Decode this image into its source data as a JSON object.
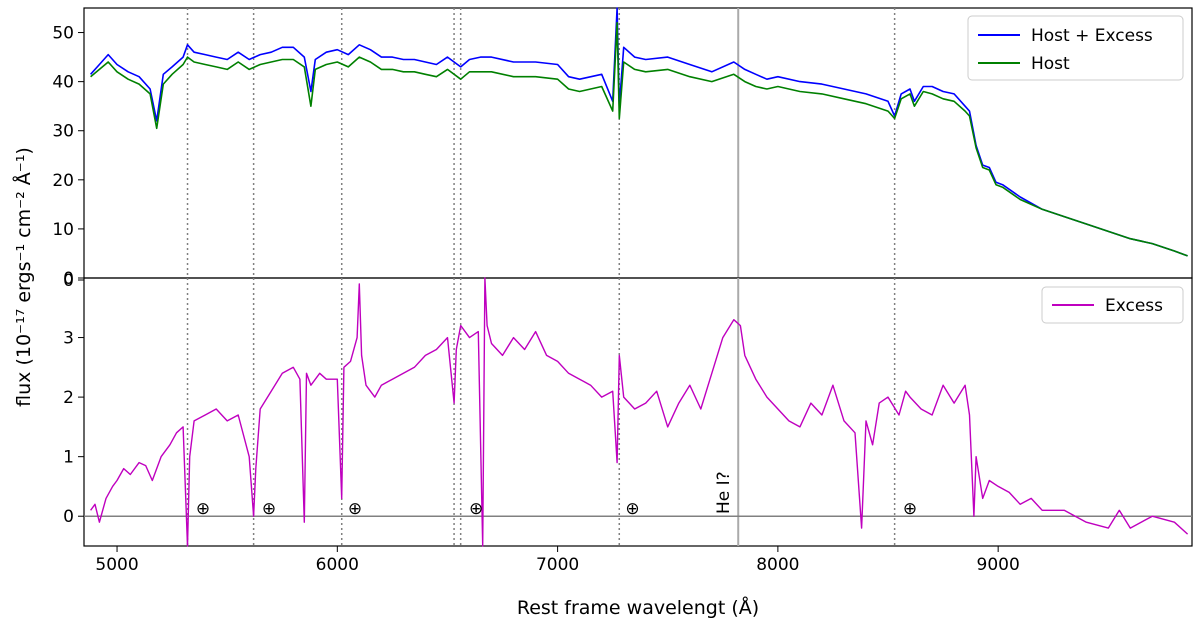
{
  "chart_data": [
    {
      "panel": "top",
      "type": "line",
      "ylim": [
        0,
        55
      ],
      "xlim": [
        4850,
        9880
      ],
      "yticks": [
        0,
        10,
        20,
        30,
        40,
        50
      ],
      "legend_position": "top-right",
      "series": [
        {
          "name": "Host + Excess",
          "color": "#0000ff",
          "x": [
            4880,
            4920,
            4960,
            5000,
            5050,
            5100,
            5150,
            5180,
            5210,
            5250,
            5300,
            5320,
            5350,
            5400,
            5450,
            5500,
            5550,
            5600,
            5650,
            5700,
            5750,
            5800,
            5850,
            5880,
            5900,
            5950,
            6000,
            6050,
            6100,
            6150,
            6200,
            6250,
            6300,
            6350,
            6400,
            6450,
            6500,
            6560,
            6600,
            6650,
            6700,
            6800,
            6900,
            7000,
            7050,
            7100,
            7200,
            7250,
            7270,
            7280,
            7300,
            7350,
            7400,
            7500,
            7600,
            7700,
            7800,
            7850,
            7900,
            7950,
            8000,
            8100,
            8200,
            8300,
            8400,
            8500,
            8530,
            8560,
            8600,
            8620,
            8660,
            8700,
            8750,
            8800,
            8850,
            8870,
            8900,
            8930,
            8960,
            8990,
            9020,
            9100,
            9200,
            9300,
            9400,
            9500,
            9600,
            9700,
            9800,
            9860
          ],
          "values": [
            41.5,
            43.5,
            45.5,
            43.5,
            42,
            41,
            38.5,
            32,
            41.5,
            43,
            45,
            47.5,
            46,
            45.5,
            45,
            44.5,
            46,
            44.5,
            45.5,
            46,
            47,
            47,
            45,
            38,
            44.5,
            46,
            46.5,
            45.5,
            47.5,
            46.5,
            45,
            45,
            44.5,
            44.5,
            44,
            43.5,
            45,
            43,
            44.5,
            45,
            45,
            44,
            44,
            43.5,
            41,
            40.5,
            41.5,
            36,
            55,
            35,
            47,
            45,
            44.5,
            45,
            43.5,
            42,
            44,
            42.5,
            41.5,
            40.5,
            41,
            40,
            39.5,
            38.5,
            37.5,
            36,
            33,
            37.5,
            38.5,
            36,
            39,
            39,
            38,
            37.5,
            35,
            34,
            27,
            23,
            22.5,
            19.5,
            19,
            16.5,
            14,
            12.5,
            11,
            9.5,
            8,
            7,
            5.5,
            4.5
          ]
        },
        {
          "name": "Host",
          "color": "#008000",
          "x": [
            4880,
            4920,
            4960,
            5000,
            5050,
            5100,
            5150,
            5180,
            5210,
            5250,
            5300,
            5320,
            5350,
            5400,
            5450,
            5500,
            5550,
            5600,
            5650,
            5700,
            5750,
            5800,
            5850,
            5880,
            5900,
            5950,
            6000,
            6050,
            6100,
            6150,
            6200,
            6250,
            6300,
            6350,
            6400,
            6450,
            6500,
            6560,
            6600,
            6650,
            6700,
            6800,
            6900,
            7000,
            7050,
            7100,
            7200,
            7250,
            7270,
            7280,
            7300,
            7350,
            7400,
            7500,
            7600,
            7700,
            7800,
            7850,
            7900,
            7950,
            8000,
            8100,
            8200,
            8300,
            8400,
            8500,
            8530,
            8560,
            8600,
            8620,
            8660,
            8700,
            8750,
            8800,
            8850,
            8870,
            8900,
            8930,
            8960,
            8990,
            9020,
            9100,
            9200,
            9300,
            9400,
            9500,
            9600,
            9700,
            9800,
            9860
          ],
          "values": [
            41,
            42.5,
            44,
            42,
            40.5,
            39.5,
            37.5,
            30.5,
            39.5,
            41.5,
            43.5,
            45,
            44,
            43.5,
            43,
            42.5,
            44,
            42.5,
            43.5,
            44,
            44.5,
            44.5,
            43,
            35,
            42.5,
            43.5,
            44,
            43,
            45,
            44,
            42.5,
            42.5,
            42,
            42,
            41.5,
            41,
            42.5,
            40.5,
            42,
            42,
            42,
            41,
            41,
            40.5,
            38.5,
            38,
            39,
            34,
            52,
            32.5,
            44,
            42.5,
            42,
            42.5,
            41,
            40,
            41.5,
            40,
            39,
            38.5,
            39,
            38,
            37.5,
            36.5,
            35.5,
            34,
            32.5,
            36.5,
            37.5,
            35,
            38,
            37.5,
            36.5,
            36,
            34,
            33,
            26.5,
            22.5,
            22,
            19,
            18.5,
            16,
            14,
            12.5,
            11,
            9.5,
            8,
            7,
            5.5,
            4.5
          ]
        }
      ]
    },
    {
      "panel": "bottom",
      "type": "line",
      "xlabel": "Rest frame wavelengt (Å)",
      "ylabel": "flux (10⁻¹⁷ ergs⁻¹ cm⁻² Å⁻¹)",
      "ylim": [
        -0.5,
        4
      ],
      "xlim": [
        4850,
        9880
      ],
      "xticks": [
        5000,
        6000,
        7000,
        8000,
        9000
      ],
      "yticks": [
        0,
        1,
        2,
        3
      ],
      "ytick_labels": [
        "0",
        "1",
        "2",
        "3"
      ],
      "top_tick_label": "0",
      "legend_position": "top-right",
      "series": [
        {
          "name": "Excess",
          "color": "#bf00bf",
          "x": [
            4880,
            4900,
            4920,
            4950,
            4980,
            5000,
            5030,
            5060,
            5100,
            5130,
            5160,
            5200,
            5240,
            5270,
            5300,
            5320,
            5330,
            5350,
            5400,
            5450,
            5500,
            5550,
            5600,
            5620,
            5630,
            5650,
            5700,
            5750,
            5800,
            5830,
            5850,
            5860,
            5880,
            5920,
            5950,
            6000,
            6020,
            6030,
            6060,
            6090,
            6100,
            6110,
            6130,
            6170,
            6200,
            6250,
            6300,
            6350,
            6400,
            6450,
            6500,
            6530,
            6540,
            6560,
            6600,
            6640,
            6660,
            6670,
            6680,
            6700,
            6750,
            6800,
            6850,
            6900,
            6950,
            7000,
            7050,
            7100,
            7150,
            7200,
            7250,
            7270,
            7280,
            7300,
            7350,
            7400,
            7450,
            7500,
            7550,
            7600,
            7650,
            7700,
            7750,
            7800,
            7830,
            7850,
            7900,
            7950,
            8000,
            8050,
            8100,
            8150,
            8200,
            8250,
            8300,
            8350,
            8380,
            8400,
            8430,
            8460,
            8500,
            8550,
            8580,
            8600,
            8650,
            8700,
            8750,
            8800,
            8850,
            8870,
            8890,
            8900,
            8930,
            8960,
            9000,
            9050,
            9100,
            9150,
            9200,
            9300,
            9400,
            9500,
            9550,
            9600,
            9700,
            9800,
            9860
          ],
          "values": [
            0.1,
            0.2,
            -0.1,
            0.3,
            0.5,
            0.6,
            0.8,
            0.7,
            0.9,
            0.85,
            0.6,
            1.0,
            1.2,
            1.4,
            1.5,
            -0.5,
            1.0,
            1.6,
            1.7,
            1.8,
            1.6,
            1.7,
            1.0,
            0.0,
            0.8,
            1.8,
            2.1,
            2.4,
            2.5,
            2.3,
            -0.1,
            2.4,
            2.2,
            2.4,
            2.3,
            2.3,
            0.3,
            2.5,
            2.6,
            3.0,
            3.9,
            2.7,
            2.2,
            2.0,
            2.2,
            2.3,
            2.4,
            2.5,
            2.7,
            2.8,
            3.0,
            1.9,
            2.8,
            3.2,
            3.0,
            3.1,
            -0.5,
            4.0,
            3.2,
            2.9,
            2.7,
            3.0,
            2.8,
            3.1,
            2.7,
            2.6,
            2.4,
            2.3,
            2.2,
            2.0,
            2.1,
            0.9,
            2.7,
            2.0,
            1.8,
            1.9,
            2.1,
            1.5,
            1.9,
            2.2,
            1.8,
            2.4,
            3.0,
            3.3,
            3.2,
            2.7,
            2.3,
            2.0,
            1.8,
            1.6,
            1.5,
            1.9,
            1.7,
            2.2,
            1.6,
            1.4,
            -0.2,
            1.6,
            1.2,
            1.9,
            2.0,
            1.7,
            2.1,
            2.0,
            1.8,
            1.7,
            2.2,
            1.9,
            2.2,
            1.7,
            0.0,
            1.0,
            0.3,
            0.6,
            0.5,
            0.4,
            0.2,
            0.3,
            0.1,
            0.1,
            -0.1,
            -0.2,
            0.1,
            -0.2,
            0.0,
            -0.1,
            -0.3
          ]
        }
      ],
      "vlines_dotted": [
        5320,
        5620,
        6020,
        6530,
        6560,
        7280,
        8530
      ],
      "vline_solid": 7820,
      "annotations": [
        {
          "label": "⊕",
          "x": 5390
        },
        {
          "label": "⊕",
          "x": 5690
        },
        {
          "label": "⊕",
          "x": 6080
        },
        {
          "label": "⊕",
          "x": 6630
        },
        {
          "label": "⊕",
          "x": 7340
        },
        {
          "label": "⊕",
          "x": 8600
        },
        {
          "label": "He I?",
          "x": 7750
        }
      ]
    }
  ]
}
